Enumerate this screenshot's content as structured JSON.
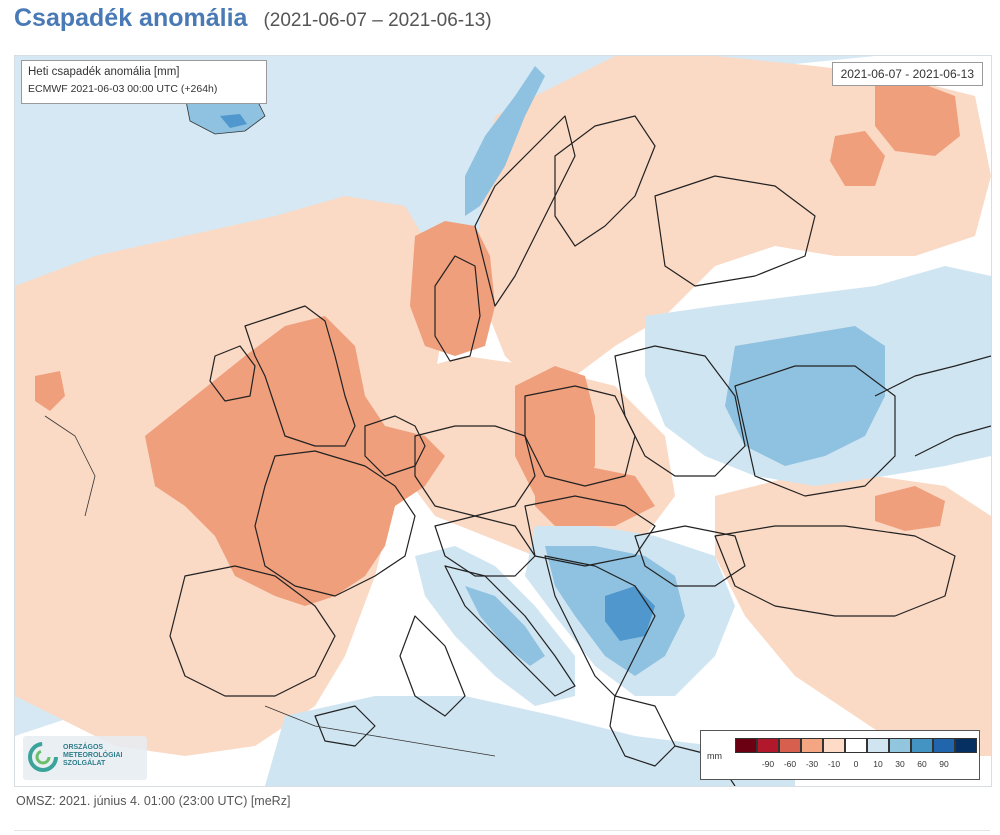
{
  "header": {
    "title": "Csapadék anomália",
    "date_range": "(2021-06-07 – 2021-06-13)"
  },
  "map": {
    "info_line1": "Heti csapadék anomália [mm]",
    "info_line2": "ECMWF 2021-06-03 00:00 UTC (+264h)",
    "date_label": "2021-06-07 - 2021-06-13",
    "logo_text": [
      "ORSZÁGOS",
      "METEOROLÓGIAI",
      "SZOLGÁLAT"
    ],
    "legend": {
      "unit": "mm",
      "colors": [
        "#6b0012",
        "#b2182b",
        "#d6604d",
        "#f4a582",
        "#fddbc7",
        "#ffffff",
        "#d1e5f0",
        "#92c5de",
        "#4393c3",
        "#2166ac",
        "#053061"
      ],
      "ticks": [
        "-90",
        "-60",
        "-30",
        "-10",
        "0",
        "10",
        "30",
        "60",
        "90"
      ]
    },
    "colors": {
      "water": "#d6e8f3",
      "land": "#ffffff",
      "anomaly_light_red": "#fad9c5",
      "anomaly_red": "#ef9f7c",
      "anomaly_light_blue": "#d0e5f2",
      "anomaly_blue": "#8fc1e0",
      "anomaly_dark_blue": "#4f97cc",
      "border_line": "#222222"
    }
  },
  "footer": {
    "text": "OMSZ: 2021. június 4. 01:00 (23:00  UTC)  [meRz]"
  }
}
